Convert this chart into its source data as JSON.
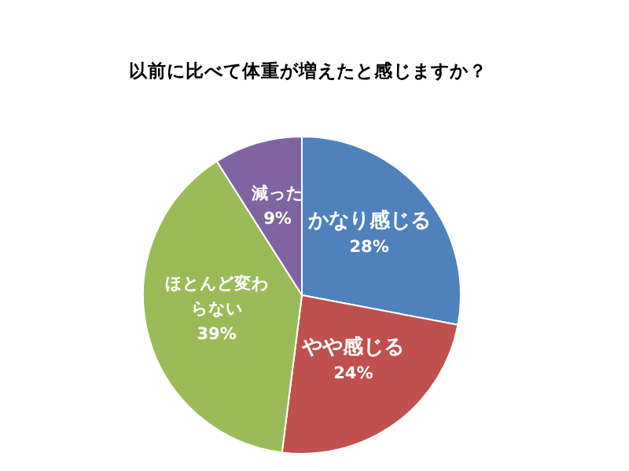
{
  "chart_data": {
    "type": "pie",
    "title": "以前に比べて体重が増えたと感じますか？",
    "categories": [
      "かなり感じる",
      "やや感じる",
      "ほとんど変わらない",
      "減った"
    ],
    "values": [
      28,
      24,
      39,
      9
    ],
    "value_labels": [
      "28%",
      "24%",
      "39%",
      "9%"
    ],
    "colors": [
      "#4f81bd",
      "#c0504d",
      "#9bbb59",
      "#8064a2"
    ],
    "legend": false
  }
}
